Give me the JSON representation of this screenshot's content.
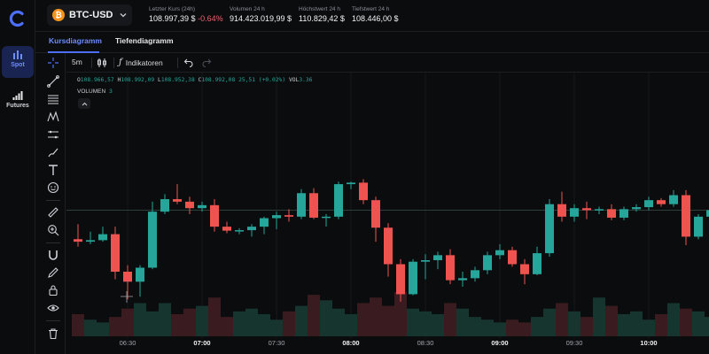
{
  "nav": {
    "items": [
      {
        "label": "Spot",
        "icon": "bar-chart-icon",
        "active": true
      },
      {
        "label": "Futures",
        "icon": "signal-bars-icon",
        "active": false
      }
    ]
  },
  "header": {
    "pair": "BTC-USD",
    "stats": [
      {
        "label": "Letzter Kurs (24h)",
        "value": "108.997,39 $",
        "change": "-0.64%"
      },
      {
        "label": "Volumen 24 h",
        "value": "914.423.019,99 $"
      },
      {
        "label": "Höchstwert 24 h",
        "value": "110.829,42 $"
      },
      {
        "label": "Tiefstwert 24 h",
        "value": "108.446,00 $"
      }
    ]
  },
  "tabs": [
    "Kursdiagramm",
    "Tiefendiagramm"
  ],
  "toolbar": {
    "interval": "5m",
    "indicators_label": "Indikatoren"
  },
  "ohlc": {
    "o": "108.966,57",
    "h": "108.992,09",
    "l": "108.952,38",
    "c": "108.992,08",
    "change": "25,51 (+0.02%)",
    "vol": "3.36"
  },
  "volume_label": "VOLUMEN",
  "volume_value": "3",
  "colors": {
    "up": "#26a69a",
    "down": "#ef5350",
    "accent": "#4c6fff"
  },
  "chart_data": {
    "type": "candlestick",
    "time_labels": [
      {
        "text": "06:30",
        "bold": false
      },
      {
        "text": "07:00",
        "bold": true
      },
      {
        "text": "07:30",
        "bold": false
      },
      {
        "text": "08:00",
        "bold": true
      },
      {
        "text": "08:30",
        "bold": false
      },
      {
        "text": "09:00",
        "bold": true
      },
      {
        "text": "09:30",
        "bold": false
      },
      {
        "text": "10:00",
        "bold": true
      }
    ],
    "ylim": [
      108780,
      109240
    ],
    "candles": [
      {
        "o": 108960,
        "h": 108990,
        "l": 108945,
        "c": 108955
      },
      {
        "o": 108955,
        "h": 108975,
        "l": 108950,
        "c": 108958
      },
      {
        "o": 108958,
        "h": 108985,
        "l": 108955,
        "c": 108970
      },
      {
        "o": 108970,
        "h": 108985,
        "l": 108880,
        "c": 108895
      },
      {
        "o": 108895,
        "h": 108908,
        "l": 108840,
        "c": 108875
      },
      {
        "o": 108875,
        "h": 108908,
        "l": 108845,
        "c": 108903
      },
      {
        "o": 108903,
        "h": 109035,
        "l": 108900,
        "c": 109015
      },
      {
        "o": 109015,
        "h": 109050,
        "l": 109010,
        "c": 109040
      },
      {
        "o": 109040,
        "h": 109070,
        "l": 109030,
        "c": 109035
      },
      {
        "o": 109035,
        "h": 109045,
        "l": 109010,
        "c": 109022
      },
      {
        "o": 109022,
        "h": 109035,
        "l": 109015,
        "c": 109028
      },
      {
        "o": 109028,
        "h": 109040,
        "l": 108975,
        "c": 108985
      },
      {
        "o": 108985,
        "h": 108995,
        "l": 108972,
        "c": 108977
      },
      {
        "o": 108977,
        "h": 108982,
        "l": 108970,
        "c": 108978
      },
      {
        "o": 108978,
        "h": 108990,
        "l": 108965,
        "c": 108985
      },
      {
        "o": 108985,
        "h": 109005,
        "l": 108970,
        "c": 109002
      },
      {
        "o": 109002,
        "h": 109015,
        "l": 108980,
        "c": 109008
      },
      {
        "o": 109008,
        "h": 109020,
        "l": 108995,
        "c": 109005
      },
      {
        "o": 109005,
        "h": 109060,
        "l": 109000,
        "c": 109052
      },
      {
        "o": 109052,
        "h": 109062,
        "l": 109000,
        "c": 109003
      },
      {
        "o": 109003,
        "h": 109010,
        "l": 108985,
        "c": 109005
      },
      {
        "o": 109005,
        "h": 109075,
        "l": 109000,
        "c": 109070
      },
      {
        "o": 109070,
        "h": 109075,
        "l": 109060,
        "c": 109073
      },
      {
        "o": 109073,
        "h": 109080,
        "l": 109030,
        "c": 109038
      },
      {
        "o": 109038,
        "h": 109045,
        "l": 108955,
        "c": 108983
      },
      {
        "o": 108983,
        "h": 108992,
        "l": 108885,
        "c": 108910
      },
      {
        "o": 108910,
        "h": 108920,
        "l": 108835,
        "c": 108850
      },
      {
        "o": 108850,
        "h": 108920,
        "l": 108848,
        "c": 108915
      },
      {
        "o": 108915,
        "h": 108930,
        "l": 108880,
        "c": 108918
      },
      {
        "o": 108918,
        "h": 108935,
        "l": 108900,
        "c": 108928
      },
      {
        "o": 108928,
        "h": 108940,
        "l": 108870,
        "c": 108878
      },
      {
        "o": 108878,
        "h": 108895,
        "l": 108865,
        "c": 108882
      },
      {
        "o": 108882,
        "h": 108905,
        "l": 108875,
        "c": 108898
      },
      {
        "o": 108898,
        "h": 108935,
        "l": 108890,
        "c": 108928
      },
      {
        "o": 108928,
        "h": 108950,
        "l": 108920,
        "c": 108938
      },
      {
        "o": 108938,
        "h": 108945,
        "l": 108905,
        "c": 108910
      },
      {
        "o": 108910,
        "h": 108920,
        "l": 108870,
        "c": 108890
      },
      {
        "o": 108890,
        "h": 108945,
        "l": 108888,
        "c": 108932
      },
      {
        "o": 108932,
        "h": 109040,
        "l": 108925,
        "c": 109030
      },
      {
        "o": 109030,
        "h": 109055,
        "l": 108995,
        "c": 109005
      },
      {
        "o": 109005,
        "h": 109030,
        "l": 108995,
        "c": 109022
      },
      {
        "o": 109022,
        "h": 109035,
        "l": 109000,
        "c": 109018
      },
      {
        "o": 109018,
        "h": 109025,
        "l": 109010,
        "c": 109020
      },
      {
        "o": 109020,
        "h": 109030,
        "l": 108998,
        "c": 109003
      },
      {
        "o": 109003,
        "h": 109025,
        "l": 108998,
        "c": 109020
      },
      {
        "o": 109020,
        "h": 109030,
        "l": 109015,
        "c": 109024
      },
      {
        "o": 109024,
        "h": 109045,
        "l": 109018,
        "c": 109038
      },
      {
        "o": 109038,
        "h": 109042,
        "l": 109025,
        "c": 109030
      },
      {
        "o": 109030,
        "h": 109058,
        "l": 109025,
        "c": 109048
      },
      {
        "o": 109048,
        "h": 109058,
        "l": 108948,
        "c": 108965
      },
      {
        "o": 108965,
        "h": 109010,
        "l": 108960,
        "c": 109005
      },
      {
        "o": 109005,
        "h": 109025,
        "l": 109000,
        "c": 109018
      }
    ],
    "volumes": [
      8,
      6,
      5,
      7,
      10,
      12,
      9,
      12,
      8,
      10,
      11,
      14,
      7,
      9,
      10,
      8,
      6,
      9,
      11,
      15,
      13,
      10,
      8,
      12,
      14,
      11,
      16,
      10,
      9,
      8,
      12,
      10,
      7,
      6,
      5,
      6,
      5,
      7,
      10,
      12,
      9,
      7,
      14,
      11,
      8,
      9,
      6,
      8,
      12,
      10,
      9,
      7
    ],
    "last_price_level": 109018
  }
}
